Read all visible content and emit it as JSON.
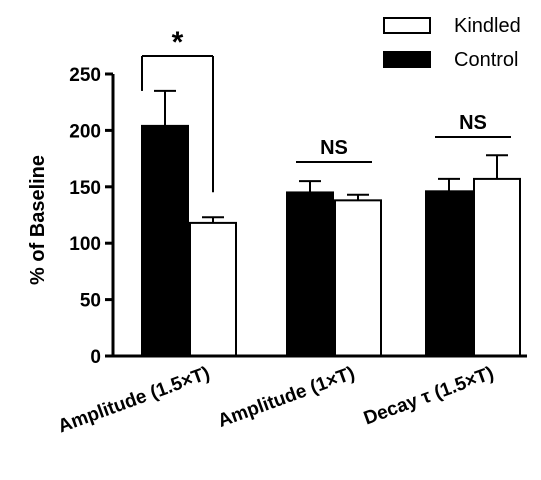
{
  "chart_data": {
    "type": "bar",
    "ylabel": "% of Baseline",
    "ylim": [
      0,
      250
    ],
    "yticks": [
      0,
      50,
      100,
      150,
      200,
      250
    ],
    "categories": [
      "Amplitude (1.5×T)",
      "Amplitude (1×T)",
      "Decay τ (1.5×T)"
    ],
    "series": [
      {
        "name": "Control",
        "color": "#000000",
        "values": [
          204,
          145,
          146
        ],
        "errors": [
          31,
          10,
          11
        ]
      },
      {
        "name": "Kindled",
        "color": "#ffffff",
        "values": [
          118,
          138,
          157
        ],
        "errors": [
          5,
          5,
          21
        ]
      }
    ],
    "legend_order": [
      "Kindled",
      "Control"
    ],
    "legend_position": "top-right",
    "annotations": [
      {
        "category": 0,
        "text": "*"
      },
      {
        "category": 1,
        "text": "NS"
      },
      {
        "category": 2,
        "text": "NS"
      }
    ]
  }
}
